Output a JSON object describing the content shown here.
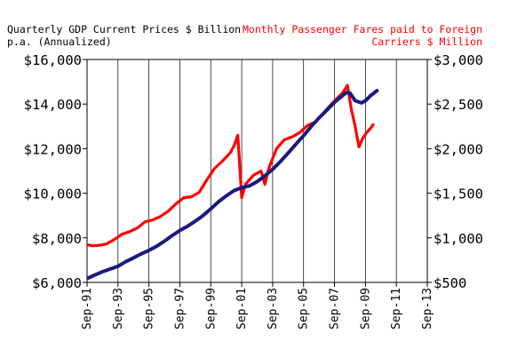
{
  "chart_data": {
    "type": "line",
    "title_left": [
      "Quarterly GDP Current Prices $ Billion",
      "p.a. (Annualized)"
    ],
    "title_right": [
      "Monthly Passenger Fares paid to Foreign",
      "Carriers $ Million"
    ],
    "x_ticks": [
      "Sep-91",
      "Sep-93",
      "Sep-95",
      "Sep-97",
      "Sep-99",
      "Sep-01",
      "Sep-03",
      "Sep-05",
      "Sep-07",
      "Sep-09",
      "Sep-11",
      "Sep-13"
    ],
    "x_range": [
      "1991-09",
      "2013-09"
    ],
    "y_left": {
      "ticks": [
        "$6,000",
        "$8,000",
        "$10,000",
        "$12,000",
        "$14,000",
        "$16,000"
      ],
      "range": [
        6000,
        16000
      ]
    },
    "y_right": {
      "ticks": [
        "$500",
        "$1,000",
        "$1,500",
        "$2,000",
        "$2,500",
        "$3,000"
      ],
      "range": [
        500,
        3000
      ]
    },
    "vertical_grid": true,
    "colors": {
      "gdp": "#1a1a80",
      "fares": "#ff0000"
    },
    "series": [
      {
        "key": "gdp",
        "axis": "left",
        "points": [
          [
            "1991-10",
            6200
          ],
          [
            "1992-03",
            6330
          ],
          [
            "1992-09",
            6480
          ],
          [
            "1993-03",
            6600
          ],
          [
            "1993-09",
            6720
          ],
          [
            "1994-03",
            6930
          ],
          [
            "1994-09",
            7100
          ],
          [
            "1995-03",
            7280
          ],
          [
            "1995-09",
            7440
          ],
          [
            "1996-03",
            7620
          ],
          [
            "1996-09",
            7850
          ],
          [
            "1997-03",
            8100
          ],
          [
            "1997-09",
            8330
          ],
          [
            "1998-03",
            8520
          ],
          [
            "1998-09",
            8750
          ],
          [
            "1999-03",
            9000
          ],
          [
            "1999-09",
            9300
          ],
          [
            "2000-03",
            9620
          ],
          [
            "2000-09",
            9880
          ],
          [
            "2001-03",
            10120
          ],
          [
            "2001-09",
            10250
          ],
          [
            "2002-03",
            10330
          ],
          [
            "2002-09",
            10520
          ],
          [
            "2003-03",
            10780
          ],
          [
            "2003-09",
            11070
          ],
          [
            "2004-03",
            11420
          ],
          [
            "2004-09",
            11800
          ],
          [
            "2005-03",
            12200
          ],
          [
            "2005-09",
            12580
          ],
          [
            "2006-03",
            13000
          ],
          [
            "2006-09",
            13380
          ],
          [
            "2007-03",
            13720
          ],
          [
            "2007-09",
            14080
          ],
          [
            "2008-03",
            14370
          ],
          [
            "2008-06",
            14510
          ],
          [
            "2008-09",
            14490
          ],
          [
            "2009-01",
            14150
          ],
          [
            "2009-06",
            14050
          ],
          [
            "2009-09",
            14150
          ],
          [
            "2010-01",
            14380
          ],
          [
            "2010-06",
            14600
          ]
        ]
      },
      {
        "key": "fares",
        "axis": "right",
        "points": [
          [
            "1991-10",
            920
          ],
          [
            "1992-01",
            910
          ],
          [
            "1992-06",
            915
          ],
          [
            "1992-12",
            930
          ],
          [
            "1993-06",
            980
          ],
          [
            "1993-12",
            1040
          ],
          [
            "1994-06",
            1070
          ],
          [
            "1994-12",
            1110
          ],
          [
            "1995-06",
            1180
          ],
          [
            "1995-12",
            1200
          ],
          [
            "1996-06",
            1240
          ],
          [
            "1996-12",
            1300
          ],
          [
            "1997-06",
            1380
          ],
          [
            "1997-12",
            1450
          ],
          [
            "1998-06",
            1460
          ],
          [
            "1998-12",
            1510
          ],
          [
            "1999-06",
            1650
          ],
          [
            "1999-12",
            1780
          ],
          [
            "2000-06",
            1860
          ],
          [
            "2000-12",
            1950
          ],
          [
            "2001-03",
            2030
          ],
          [
            "2001-06",
            2150
          ],
          [
            "2001-09",
            1450
          ],
          [
            "2001-12",
            1600
          ],
          [
            "2002-06",
            1700
          ],
          [
            "2002-12",
            1750
          ],
          [
            "2003-03",
            1600
          ],
          [
            "2003-06",
            1780
          ],
          [
            "2003-12",
            2000
          ],
          [
            "2004-06",
            2100
          ],
          [
            "2004-12",
            2130
          ],
          [
            "2005-06",
            2180
          ],
          [
            "2005-12",
            2260
          ],
          [
            "2006-06",
            2300
          ],
          [
            "2006-12",
            2390
          ],
          [
            "2007-06",
            2490
          ],
          [
            "2007-12",
            2580
          ],
          [
            "2008-03",
            2620
          ],
          [
            "2008-07",
            2710
          ],
          [
            "2008-10",
            2450
          ],
          [
            "2009-01",
            2250
          ],
          [
            "2009-04",
            2020
          ],
          [
            "2009-07",
            2120
          ],
          [
            "2009-10",
            2180
          ],
          [
            "2010-01",
            2230
          ],
          [
            "2010-03",
            2270
          ]
        ]
      }
    ]
  }
}
